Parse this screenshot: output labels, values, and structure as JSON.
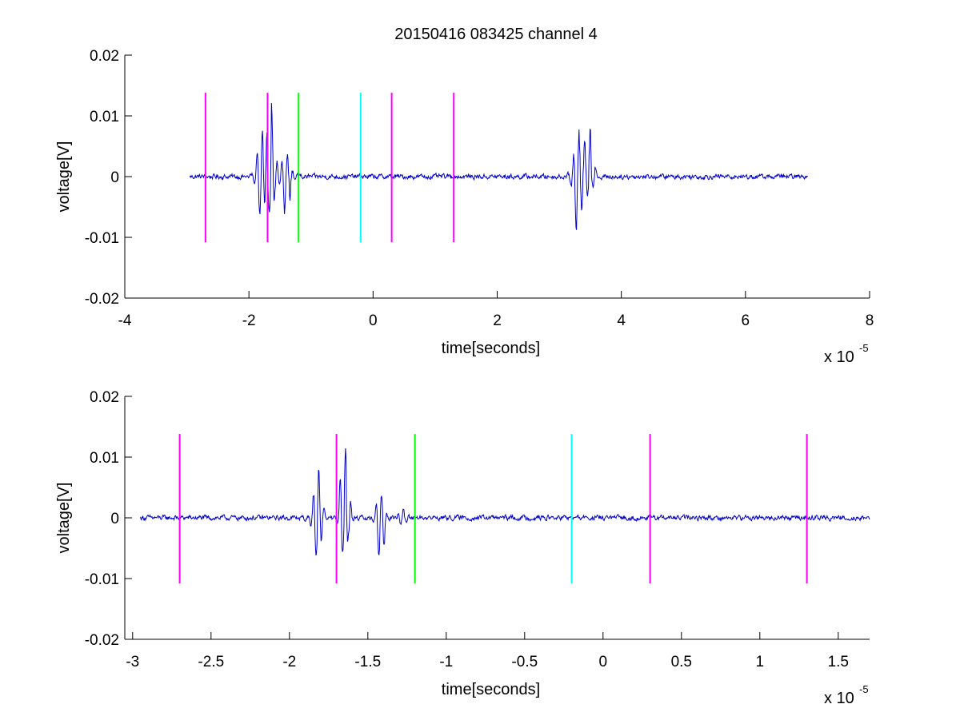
{
  "figure": {
    "title": "20150416 083425 channel 4"
  },
  "colors": {
    "signal": "#0000cc",
    "marker_magenta": "#ff00ff",
    "marker_green": "#00ff00",
    "marker_cyan": "#00ffff",
    "axes": "#000000",
    "background": "#ffffff"
  },
  "chart_data": [
    {
      "type": "line",
      "title": "20150416 083425 channel 4",
      "xlabel": "time[seconds]",
      "ylabel": "voltage[V]",
      "x_multiplier_label": "x 10",
      "x_multiplier_exponent": "-5",
      "xlim": [
        -4,
        8
      ],
      "ylim": [
        -0.02,
        0.02
      ],
      "x_ticks": [
        -4,
        -2,
        0,
        2,
        4,
        6,
        8
      ],
      "x_tick_labels": [
        "-4",
        "-2",
        "0",
        "2",
        "4",
        "6",
        "8"
      ],
      "y_ticks": [
        -0.02,
        -0.01,
        0,
        0.01,
        0.02
      ],
      "y_tick_labels": [
        "-0.02",
        "-0.01",
        "0",
        "0.01",
        "0.02"
      ],
      "grid": false,
      "series": [
        {
          "color": "#0000cc",
          "x_range": [
            -2.95,
            7.0
          ],
          "noise_amplitude": 0.0004,
          "bursts": [
            {
              "center": -1.8,
              "peak_max": 0.008,
              "peak_min": -0.007
            },
            {
              "center": -1.65,
              "peak_max": 0.0125,
              "peak_min": -0.007
            },
            {
              "center": -1.4,
              "peak_max": 0.004,
              "peak_min": -0.007
            },
            {
              "center": 3.3,
              "peak_max": 0.008,
              "peak_min": -0.0098
            },
            {
              "center": 3.48,
              "peak_max": 0.0085,
              "peak_min": -0.003
            }
          ]
        }
      ],
      "markers": [
        {
          "x": -2.7,
          "color": "magenta",
          "y_range": [
            -0.0108,
            0.0138
          ]
        },
        {
          "x": -1.7,
          "color": "magenta",
          "y_range": [
            -0.0108,
            0.0138
          ]
        },
        {
          "x": -1.2,
          "color": "green",
          "y_range": [
            -0.0108,
            0.0138
          ]
        },
        {
          "x": -0.2,
          "color": "cyan",
          "y_range": [
            -0.0108,
            0.0138
          ]
        },
        {
          "x": 0.3,
          "color": "magenta",
          "y_range": [
            -0.0108,
            0.0138
          ]
        },
        {
          "x": 1.3,
          "color": "magenta",
          "y_range": [
            -0.0108,
            0.0138
          ]
        }
      ]
    },
    {
      "type": "line",
      "title": "",
      "xlabel": "time[seconds]",
      "ylabel": "voltage[V]",
      "x_multiplier_label": "x 10",
      "x_multiplier_exponent": "-5",
      "xlim": [
        -3.05,
        1.7
      ],
      "ylim": [
        -0.02,
        0.02
      ],
      "x_ticks": [
        -3,
        -2.5,
        -2,
        -1.5,
        -1,
        -0.5,
        0,
        0.5,
        1,
        1.5
      ],
      "x_tick_labels": [
        "-3",
        "-2.5",
        "-2",
        "-1.5",
        "-1",
        "-0.5",
        "0",
        "0.5",
        "1",
        "1.5"
      ],
      "y_ticks": [
        -0.02,
        -0.01,
        0,
        0.01,
        0.02
      ],
      "y_tick_labels": [
        "-0.02",
        "-0.01",
        "0",
        "0.01",
        "0.02"
      ],
      "grid": false,
      "series": [
        {
          "color": "#0000cc",
          "x_range": [
            -2.95,
            1.7
          ],
          "noise_amplitude": 0.0004,
          "bursts": [
            {
              "center": -1.82,
              "peak_max": 0.0082,
              "peak_min": -0.007
            },
            {
              "center": -1.65,
              "peak_max": 0.0125,
              "peak_min": -0.0065
            },
            {
              "center": -1.42,
              "peak_max": 0.004,
              "peak_min": -0.0072
            },
            {
              "center": -1.28,
              "peak_max": 0.0017,
              "peak_min": -0.0012
            }
          ]
        }
      ],
      "markers": [
        {
          "x": -2.7,
          "color": "magenta",
          "y_range": [
            -0.0108,
            0.0138
          ]
        },
        {
          "x": -1.7,
          "color": "magenta",
          "y_range": [
            -0.0108,
            0.0138
          ]
        },
        {
          "x": -1.2,
          "color": "green",
          "y_range": [
            -0.0108,
            0.0138
          ]
        },
        {
          "x": -0.2,
          "color": "cyan",
          "y_range": [
            -0.0108,
            0.0138
          ]
        },
        {
          "x": 0.3,
          "color": "magenta",
          "y_range": [
            -0.0108,
            0.0138
          ]
        },
        {
          "x": 1.3,
          "color": "magenta",
          "y_range": [
            -0.0108,
            0.0138
          ]
        }
      ]
    }
  ]
}
